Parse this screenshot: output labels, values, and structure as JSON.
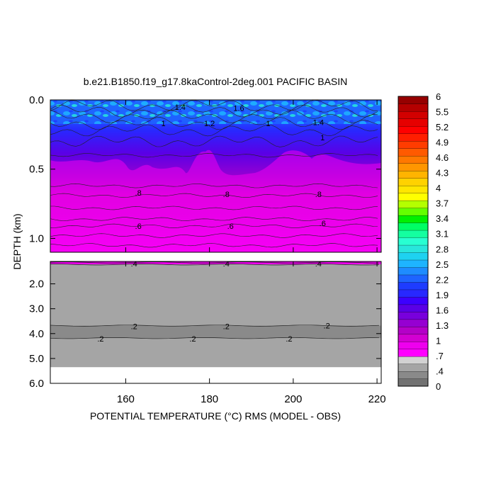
{
  "chart_data": {
    "type": "heatmap",
    "title": "b.e21.B1850.f19_g17.8kaControl-2deg.001 PACIFIC BASIN",
    "xlabel": "POTENTIAL TEMPERATURE (°C) RMS (MODEL - OBS)",
    "ylabel": "DEPTH (km)",
    "xlim": [
      142,
      221
    ],
    "x_ticks": [
      "160",
      "180",
      "200",
      "220"
    ],
    "x_tick_values": [
      160,
      180,
      200,
      220
    ],
    "upper_panel": {
      "ylim": [
        0.0,
        1.1
      ],
      "y_ticks": [
        "0.0",
        "0.5",
        "1.0"
      ],
      "y_tick_values": [
        0.0,
        0.5,
        1.0
      ],
      "contour_labels": [
        {
          "text": "1.4",
          "x": 173,
          "y": 0.05
        },
        {
          "text": "1.6",
          "x": 187,
          "y": 0.06
        },
        {
          "text": "1.4",
          "x": 206,
          "y": 0.16
        },
        {
          "text": "1.2",
          "x": 180,
          "y": 0.17
        },
        {
          "text": "1",
          "x": 194,
          "y": 0.17
        },
        {
          "text": "1",
          "x": 169,
          "y": 0.17
        },
        {
          "text": "1",
          "x": 207,
          "y": 0.27
        },
        {
          "text": ".8",
          "x": 163,
          "y": 0.67
        },
        {
          "text": ".8",
          "x": 184,
          "y": 0.68
        },
        {
          "text": ".8",
          "x": 206,
          "y": 0.68
        },
        {
          "text": ".6",
          "x": 163,
          "y": 0.91
        },
        {
          "text": ".6",
          "x": 185,
          "y": 0.91
        },
        {
          "text": ".6",
          "x": 207,
          "y": 0.89
        }
      ]
    },
    "lower_panel": {
      "ylim": [
        1.1,
        6.0
      ],
      "y_ticks": [
        "2.0",
        "3.0",
        "4.0",
        "5.0",
        "6.0"
      ],
      "y_tick_values": [
        2.0,
        3.0,
        4.0,
        5.0,
        6.0
      ],
      "bottom_depth": 5.35,
      "contour_labels": [
        {
          "text": ".4",
          "x": 162,
          "y": 1.18
        },
        {
          "text": ".4",
          "x": 184,
          "y": 1.18
        },
        {
          "text": ".4",
          "x": 206,
          "y": 1.18
        },
        {
          "text": ".2",
          "x": 162,
          "y": 3.7
        },
        {
          "text": ".2",
          "x": 184,
          "y": 3.7
        },
        {
          "text": ".2",
          "x": 208,
          "y": 3.68
        },
        {
          "text": ".2",
          "x": 154,
          "y": 4.2
        },
        {
          "text": ".2",
          "x": 176,
          "y": 4.2
        },
        {
          "text": ".2",
          "x": 199,
          "y": 4.2
        }
      ]
    },
    "colorbar": {
      "range": [
        0,
        6
      ],
      "labels": [
        "6",
        "5.5",
        "5.2",
        "4.9",
        "4.6",
        "4.3",
        "4",
        "3.7",
        "3.4",
        "3.1",
        "2.8",
        "2.5",
        "2.2",
        "1.9",
        "1.6",
        "1.3",
        "1",
        ".7",
        ".4",
        "0"
      ],
      "colors_bottom_to_top": [
        "#727272",
        "#8a8a8a",
        "#a5a5a5",
        "#d2d2d2",
        "#ff00ff",
        "#ee00ee",
        "#d200d2",
        "#b400c8",
        "#9600d2",
        "#7800dc",
        "#5a00e6",
        "#3c00ff",
        "#2828ff",
        "#1e3cff",
        "#1e64ff",
        "#1e8cff",
        "#1eb4ff",
        "#1ed2f0",
        "#28e6dc",
        "#28ffd2",
        "#14ffa0",
        "#00ff64",
        "#00f000",
        "#64ff00",
        "#b4ff00",
        "#ffff00",
        "#ffe600",
        "#ffd200",
        "#ffb400",
        "#ff9600",
        "#ff7800",
        "#ff5a00",
        "#ff3c00",
        "#ff1e00",
        "#ff0000",
        "#e60000",
        "#d20000",
        "#b40000",
        "#960000"
      ]
    }
  }
}
